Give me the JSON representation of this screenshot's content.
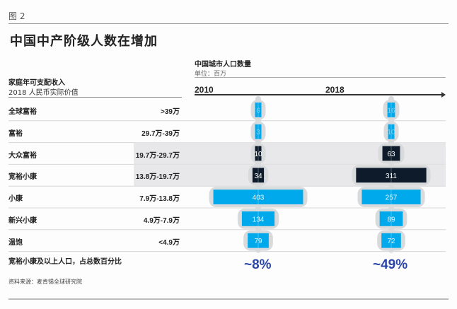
{
  "figure_label": "图 2",
  "title": "中国中产阶级人数在增加",
  "chart_data": {
    "type": "bar",
    "title": "中国城市人口数量",
    "unit": "单位：百万",
    "left_header": "家庭年可支配收入",
    "left_subheader": "2018 人民币实际价值",
    "years": [
      "2010",
      "2018"
    ],
    "categories": [
      {
        "name": "全球富裕",
        "range": ">39万"
      },
      {
        "name": "富裕",
        "range": "29.7万-39万"
      },
      {
        "name": "大众富裕",
        "range": "19.7万-29.7万"
      },
      {
        "name": "宽裕小康",
        "range": "13.8万-19.7万"
      },
      {
        "name": "小康",
        "range": "7.9万-13.8万"
      },
      {
        "name": "新兴小康",
        "range": "4.9万-7.9万"
      },
      {
        "name": "温饱",
        "range": "<4.9万"
      }
    ],
    "series": [
      {
        "name": "2010",
        "values": [
          6,
          3,
          10,
          34,
          403,
          134,
          79
        ]
      },
      {
        "name": "2018",
        "values": [
          16,
          10,
          63,
          311,
          257,
          89,
          72
        ]
      }
    ],
    "highlighted_categories": [
      "大众富裕",
      "宽裕小康"
    ],
    "share_label": "宽裕小康及以上人口，占总数百分比",
    "share_values": [
      "~8%",
      "~49%"
    ]
  },
  "source": "资料来源：麦肯锡全球研究院",
  "colors": {
    "light_blue": "#00a9ec",
    "dark_navy": "#0d1b2a",
    "silhouette": "#d9dadc",
    "highlight_band": "#e8e8ea",
    "percent": "#2a46a8"
  }
}
